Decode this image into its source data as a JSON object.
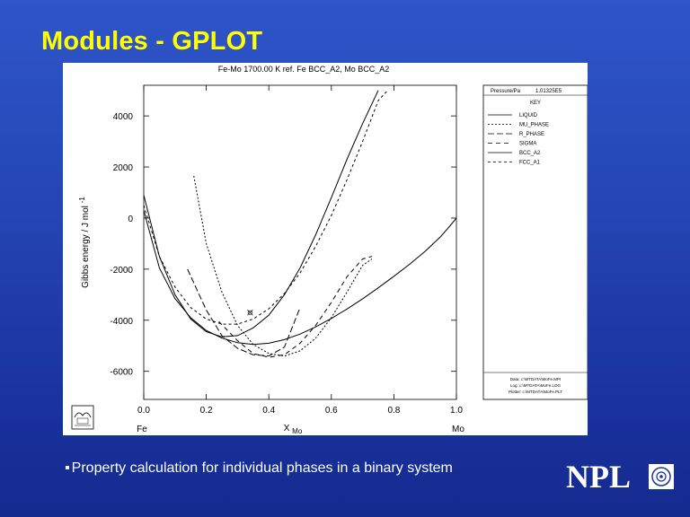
{
  "slide": {
    "title": "Modules - GPLOT",
    "bullet_mark": "▪",
    "bullet_text": "Property calculation for individual phases in a binary system",
    "logo_text": "NPL"
  },
  "chart_data": {
    "type": "line",
    "title": "Fe-Mo   1700.00 K   ref. Fe BCC_A2, Mo BCC_A2",
    "xlabel": "XMo",
    "xlabel_main": "X",
    "xlabel_sub": "Mo",
    "ylabel": "Gibbs energy / J mol",
    "ylabel_sup": "-1",
    "xlim": [
      0.0,
      1.0
    ],
    "ylim": [
      -7100,
      5200
    ],
    "x_ticks": [
      0.0,
      0.2,
      0.4,
      0.6,
      0.8,
      1.0
    ],
    "x_tick_labels": [
      "0.0",
      "0.2",
      "0.4",
      "0.6",
      "0.8",
      "1.0"
    ],
    "y_ticks": [
      4000,
      2000,
      0,
      -2000,
      -4000,
      -6000
    ],
    "y_tick_labels": [
      "4000",
      "2000",
      "0",
      "-2000",
      "-4000",
      "-6000"
    ],
    "x_end_labels": [
      "Fe",
      "Mo"
    ],
    "legend_placement": "right",
    "legend_header": "Pressure/Pa",
    "legend_pressure": "1.01325E5",
    "legend_key_label": "KEY",
    "grid": false,
    "footer_lines": [
      "Data: c:\\MTDATA\\MoFe.MPI",
      "Log: c:\\MTDATA\\MoFe.LOG",
      "Plotter: c:\\MTDATA\\MoFe.PLT"
    ],
    "marker": {
      "x": 0.34,
      "y": -3700
    },
    "series": [
      {
        "name": "LIQUID",
        "dash": "",
        "points": [
          [
            0,
            300
          ],
          [
            0.05,
            -1950
          ],
          [
            0.1,
            -3150
          ],
          [
            0.15,
            -3900
          ],
          [
            0.2,
            -4400
          ],
          [
            0.25,
            -4700
          ],
          [
            0.3,
            -4880
          ],
          [
            0.35,
            -4950
          ],
          [
            0.4,
            -4900
          ],
          [
            0.45,
            -4760
          ],
          [
            0.5,
            -4540
          ],
          [
            0.55,
            -4260
          ],
          [
            0.6,
            -3930
          ],
          [
            0.65,
            -3560
          ],
          [
            0.7,
            -3160
          ],
          [
            0.75,
            -2730
          ],
          [
            0.8,
            -2280
          ],
          [
            0.85,
            -1810
          ],
          [
            0.9,
            -1300
          ],
          [
            0.95,
            -720
          ],
          [
            0.98,
            -300
          ],
          [
            1.0,
            0
          ]
        ]
      },
      {
        "name": "MU_PHASE",
        "dash": "2,2",
        "points": [
          [
            0.16,
            1650
          ],
          [
            0.2,
            -1000
          ],
          [
            0.25,
            -2900
          ],
          [
            0.3,
            -4200
          ],
          [
            0.35,
            -4950
          ],
          [
            0.4,
            -5300
          ],
          [
            0.45,
            -5400
          ],
          [
            0.5,
            -5200
          ],
          [
            0.55,
            -4700
          ],
          [
            0.6,
            -3900
          ],
          [
            0.65,
            -2900
          ],
          [
            0.7,
            -1850
          ],
          [
            0.73,
            -1600
          ]
        ]
      },
      {
        "name": "R_PHASE",
        "dash": "7,3",
        "points": [
          [
            0.14,
            -2000
          ],
          [
            0.2,
            -3600
          ],
          [
            0.25,
            -4600
          ],
          [
            0.3,
            -5100
          ],
          [
            0.35,
            -5350
          ],
          [
            0.4,
            -5400
          ],
          [
            0.45,
            -5050
          ],
          [
            0.5,
            -3500
          ]
        ]
      },
      {
        "name": "SIGMA",
        "dash": "5,4",
        "points": [
          [
            0.24,
            -4050
          ],
          [
            0.3,
            -4800
          ],
          [
            0.35,
            -5300
          ],
          [
            0.4,
            -5450
          ],
          [
            0.45,
            -5350
          ],
          [
            0.5,
            -4900
          ],
          [
            0.55,
            -4200
          ],
          [
            0.6,
            -3300
          ],
          [
            0.65,
            -2300
          ],
          [
            0.7,
            -1600
          ],
          [
            0.73,
            -1500
          ]
        ]
      },
      {
        "name": "BCC_A2",
        "dash": "",
        "points": [
          [
            0,
            900
          ],
          [
            0.05,
            -1500
          ],
          [
            0.1,
            -3000
          ],
          [
            0.15,
            -3950
          ],
          [
            0.2,
            -4450
          ],
          [
            0.25,
            -4650
          ],
          [
            0.3,
            -4600
          ],
          [
            0.35,
            -4300
          ],
          [
            0.4,
            -3800
          ],
          [
            0.45,
            -3000
          ],
          [
            0.5,
            -1950
          ],
          [
            0.55,
            -650
          ],
          [
            0.6,
            800
          ],
          [
            0.65,
            2300
          ],
          [
            0.7,
            3700
          ],
          [
            0.75,
            5000
          ]
        ]
      },
      {
        "name": "FCC_A1",
        "dash": "3,3",
        "points": [
          [
            0,
            500
          ],
          [
            0.05,
            -1500
          ],
          [
            0.1,
            -2700
          ],
          [
            0.15,
            -3500
          ],
          [
            0.2,
            -3950
          ],
          [
            0.25,
            -4150
          ],
          [
            0.3,
            -4150
          ],
          [
            0.35,
            -3950
          ],
          [
            0.4,
            -3550
          ],
          [
            0.45,
            -2950
          ],
          [
            0.5,
            -2150
          ],
          [
            0.55,
            -1100
          ],
          [
            0.6,
            100
          ],
          [
            0.65,
            1500
          ],
          [
            0.7,
            3000
          ],
          [
            0.75,
            4600
          ],
          [
            0.78,
            5000
          ]
        ]
      }
    ]
  }
}
